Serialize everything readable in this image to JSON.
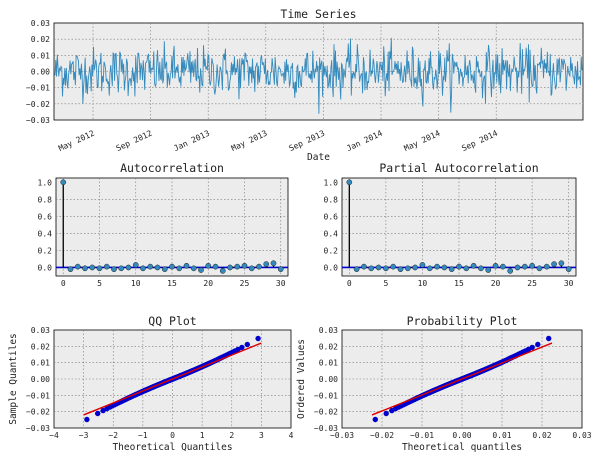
{
  "chart_data": [
    {
      "id": "ts",
      "type": "line",
      "title": "Time Series",
      "xlabel": "Date",
      "ylabel": "",
      "ylim": [
        -0.03,
        0.03
      ],
      "yticks": [
        "0.03",
        "0.02",
        "0.01",
        "0.00",
        "−0.01",
        "−0.02",
        "−0.03"
      ],
      "xticks": [
        "May 2012",
        "Sep 2012",
        "Jan 2013",
        "May 2013",
        "Sep 2013",
        "Jan 2014",
        "May 2014",
        "Sep 2014"
      ],
      "x_start": "2012-01",
      "x_end": "2014-12",
      "n_points": 700,
      "series_color": "#348abd",
      "grid": true
    },
    {
      "id": "acf",
      "type": "scatter",
      "title": "Autocorrelation",
      "xlim": [
        -1,
        31
      ],
      "ylim": [
        -0.1,
        1.05
      ],
      "xticks": [
        "0",
        "5",
        "10",
        "15",
        "20",
        "25",
        "30"
      ],
      "yticks": [
        "1.0",
        "0.8",
        "0.6",
        "0.4",
        "0.2",
        "0.0"
      ],
      "lags": [
        0,
        1,
        2,
        3,
        4,
        5,
        6,
        7,
        8,
        9,
        10,
        11,
        12,
        13,
        14,
        15,
        16,
        17,
        18,
        19,
        20,
        21,
        22,
        23,
        24,
        25,
        26,
        27,
        28,
        29,
        30
      ],
      "values": [
        1.0,
        -0.02,
        0.01,
        -0.01,
        0.0,
        -0.01,
        0.01,
        -0.02,
        -0.01,
        0.0,
        0.03,
        -0.01,
        0.01,
        0.0,
        -0.02,
        0.01,
        -0.01,
        0.02,
        -0.01,
        -0.03,
        0.02,
        0.01,
        -0.04,
        0.0,
        0.01,
        0.02,
        -0.01,
        0.01,
        0.04,
        0.05,
        -0.02
      ],
      "marker_color": "#348abd",
      "zero_line_color": "#0000cc",
      "grid": true
    },
    {
      "id": "pacf",
      "type": "scatter",
      "title": "Partial Autocorrelation",
      "xlim": [
        -1,
        31
      ],
      "ylim": [
        -0.1,
        1.05
      ],
      "xticks": [
        "0",
        "5",
        "10",
        "15",
        "20",
        "25",
        "30"
      ],
      "yticks": [
        "1.0",
        "0.8",
        "0.6",
        "0.4",
        "0.2",
        "0.0"
      ],
      "lags": [
        0,
        1,
        2,
        3,
        4,
        5,
        6,
        7,
        8,
        9,
        10,
        11,
        12,
        13,
        14,
        15,
        16,
        17,
        18,
        19,
        20,
        21,
        22,
        23,
        24,
        25,
        26,
        27,
        28,
        29,
        30
      ],
      "values": [
        1.0,
        -0.02,
        0.01,
        -0.01,
        0.0,
        -0.01,
        0.01,
        -0.02,
        -0.01,
        0.0,
        0.03,
        -0.01,
        0.01,
        0.0,
        -0.02,
        0.01,
        -0.01,
        0.02,
        -0.01,
        -0.03,
        0.02,
        0.01,
        -0.04,
        0.0,
        0.01,
        0.02,
        -0.01,
        0.01,
        0.04,
        0.05,
        -0.02
      ],
      "marker_color": "#348abd",
      "zero_line_color": "#0000cc",
      "grid": true
    },
    {
      "id": "qq",
      "type": "scatter",
      "title": "QQ Plot",
      "xlabel": "Theoretical Quantiles",
      "ylabel": "Sample Quantiles",
      "xlim": [
        -4,
        4
      ],
      "ylim": [
        -0.03,
        0.03
      ],
      "xticks": [
        "−4",
        "−3",
        "−2",
        "−1",
        "0",
        "1",
        "2",
        "3",
        "4"
      ],
      "yticks": [
        "0.03",
        "0.02",
        "0.01",
        "0.00",
        "−0.01",
        "−0.02",
        "−0.03"
      ],
      "fit_line": [
        [
          -3,
          -0.022
        ],
        [
          3,
          0.022
        ]
      ],
      "x_range": [
        -3.0,
        3.0
      ],
      "marker_color": "#0000cc",
      "fit_color": "#dd0000",
      "grid": true
    },
    {
      "id": "prob",
      "type": "scatter",
      "title": "Probability Plot",
      "xlabel": "Theoretical quantiles",
      "ylabel": "Ordered Values",
      "xlim": [
        -0.03,
        0.03
      ],
      "ylim": [
        -0.03,
        0.03
      ],
      "xticks": [
        "−0.03",
        "−0.02",
        "−0.01",
        "0.00",
        "0.01",
        "0.02",
        "0.03"
      ],
      "yticks": [
        "0.03",
        "0.02",
        "0.01",
        "0.00",
        "−0.01",
        "−0.02",
        "−0.03"
      ],
      "fit_line": [
        [
          -0.0225,
          -0.022
        ],
        [
          0.0225,
          0.022
        ]
      ],
      "x_range": [
        -0.0225,
        0.0235
      ],
      "marker_color": "#0000cc",
      "fit_color": "#dd0000",
      "grid": true
    }
  ]
}
